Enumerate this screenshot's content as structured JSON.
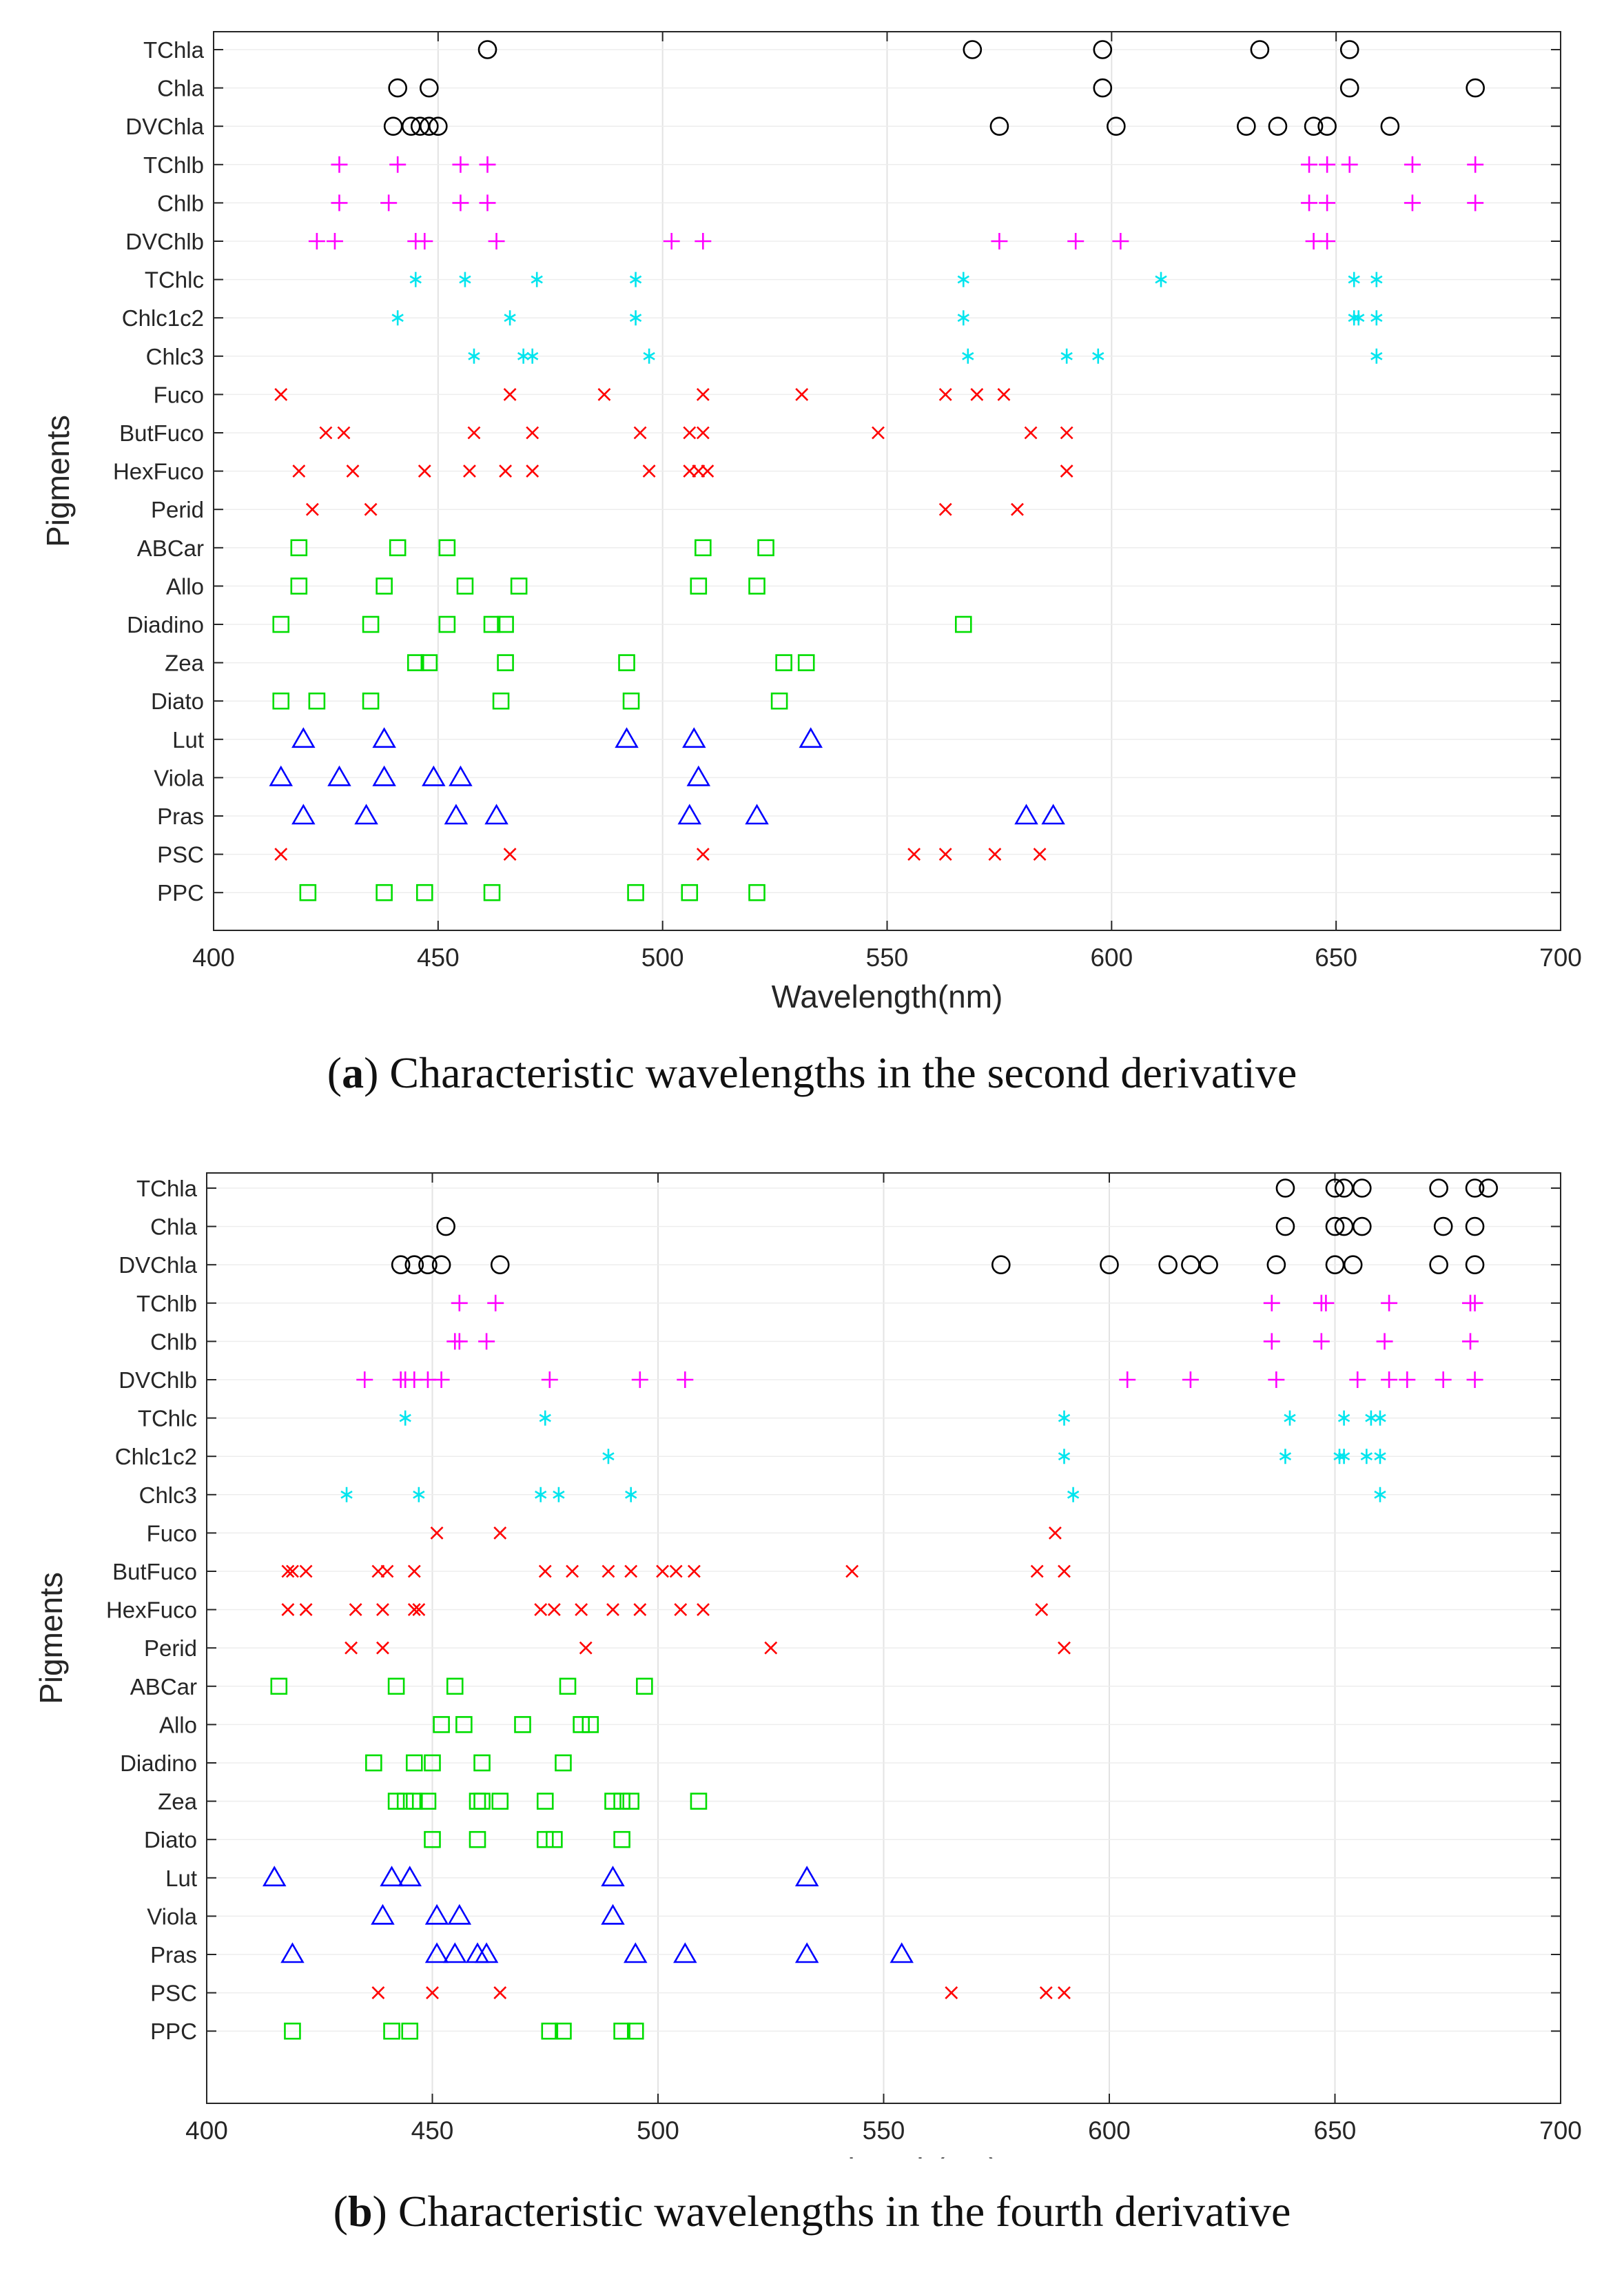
{
  "chart_data": [
    {
      "type": "scatter",
      "panel_letter": "a",
      "caption": "Characteristic wavelengths in the second derivative",
      "xlabel": "Wavelength(nm)",
      "ylabel": "Pigments",
      "xlim": [
        400,
        700
      ],
      "xticks": [
        400,
        450,
        500,
        550,
        600,
        650,
        700
      ],
      "grid": true,
      "categories": [
        "TChla",
        "Chla",
        "DVChla",
        "TChlb",
        "Chlb",
        "DVChlb",
        "TChlc",
        "Chlc1c2",
        "Chlc3",
        "Fuco",
        "ButFuco",
        "HexFuco",
        "Perid",
        "ABCar",
        "Allo",
        "Diadino",
        "Zea",
        "Diato",
        "Lut",
        "Viola",
        "Pras",
        "PSC",
        "PPC"
      ],
      "series": [
        {
          "name": "TChla",
          "marker": "circle",
          "color": "#000000",
          "values": [
            461,
            569,
            598,
            633,
            653
          ]
        },
        {
          "name": "Chla",
          "marker": "circle",
          "color": "#000000",
          "values": [
            441,
            448,
            598,
            653,
            681
          ]
        },
        {
          "name": "DVChla",
          "marker": "circle",
          "color": "#000000",
          "values": [
            440,
            444,
            446,
            448,
            450,
            575,
            601,
            630,
            637,
            645,
            648,
            662
          ]
        },
        {
          "name": "TChlb",
          "marker": "plus",
          "color": "#ff00ff",
          "values": [
            428,
            441,
            455,
            461,
            644,
            648,
            653,
            667,
            681
          ]
        },
        {
          "name": "Chlb",
          "marker": "plus",
          "color": "#ff00ff",
          "values": [
            428,
            439,
            455,
            461,
            644,
            648,
            667,
            681
          ]
        },
        {
          "name": "DVChlb",
          "marker": "plus",
          "color": "#ff00ff",
          "values": [
            423,
            427,
            445,
            447,
            463,
            502,
            509,
            575,
            592,
            602,
            645,
            648
          ]
        },
        {
          "name": "TChlc",
          "marker": "asterisk",
          "color": "#00e5ee",
          "values": [
            445,
            456,
            472,
            494,
            567,
            611,
            654,
            659
          ]
        },
        {
          "name": "Chlc1c2",
          "marker": "asterisk",
          "color": "#00e5ee",
          "values": [
            441,
            466,
            494,
            567,
            654,
            655,
            659
          ]
        },
        {
          "name": "Chlc3",
          "marker": "asterisk",
          "color": "#00e5ee",
          "values": [
            458,
            469,
            471,
            497,
            568,
            590,
            597,
            659
          ]
        },
        {
          "name": "Fuco",
          "marker": "cross",
          "color": "#ff0000",
          "values": [
            415,
            466,
            487,
            509,
            531,
            563,
            570,
            576
          ]
        },
        {
          "name": "ButFuco",
          "marker": "cross",
          "color": "#ff0000",
          "values": [
            425,
            429,
            458,
            471,
            495,
            506,
            509,
            548,
            582,
            590
          ]
        },
        {
          "name": "HexFuco",
          "marker": "cross",
          "color": "#ff0000",
          "values": [
            419,
            431,
            447,
            457,
            465,
            471,
            497,
            506,
            508,
            510,
            590
          ]
        },
        {
          "name": "Perid",
          "marker": "cross",
          "color": "#ff0000",
          "values": [
            422,
            435,
            563,
            579
          ]
        },
        {
          "name": "ABCar",
          "marker": "square",
          "color": "#00dd00",
          "values": [
            419,
            441,
            452,
            509,
            523
          ]
        },
        {
          "name": "Allo",
          "marker": "square",
          "color": "#00dd00",
          "values": [
            419,
            438,
            456,
            468,
            508,
            521
          ]
        },
        {
          "name": "Diadino",
          "marker": "square",
          "color": "#00dd00",
          "values": [
            415,
            435,
            452,
            462,
            465,
            567
          ]
        },
        {
          "name": "Zea",
          "marker": "square",
          "color": "#00dd00",
          "values": [
            445,
            448,
            465,
            492,
            527,
            532
          ]
        },
        {
          "name": "Diato",
          "marker": "square",
          "color": "#00dd00",
          "values": [
            415,
            423,
            435,
            464,
            493,
            526
          ]
        },
        {
          "name": "Lut",
          "marker": "triangle",
          "color": "#0000ff",
          "values": [
            420,
            438,
            492,
            507,
            533
          ]
        },
        {
          "name": "Viola",
          "marker": "triangle",
          "color": "#0000ff",
          "values": [
            415,
            428,
            438,
            449,
            455,
            508
          ]
        },
        {
          "name": "Pras",
          "marker": "triangle",
          "color": "#0000ff",
          "values": [
            420,
            434,
            454,
            463,
            506,
            521,
            581,
            587
          ]
        },
        {
          "name": "PSC",
          "marker": "cross",
          "color": "#ff0000",
          "values": [
            415,
            466,
            509,
            556,
            563,
            574,
            584
          ]
        },
        {
          "name": "PPC",
          "marker": "square",
          "color": "#00dd00",
          "values": [
            421,
            438,
            447,
            462,
            494,
            506,
            521
          ]
        }
      ]
    },
    {
      "type": "scatter",
      "panel_letter": "b",
      "caption": "Characteristic wavelengths in the fourth derivative",
      "xlabel": "Wavelength(nm)",
      "ylabel": "Pigments",
      "xlim": [
        400,
        700
      ],
      "xticks": [
        400,
        450,
        500,
        550,
        600,
        650,
        700
      ],
      "grid": true,
      "categories": [
        "TChla",
        "Chla",
        "DVChla",
        "TChlb",
        "Chlb",
        "DVChlb",
        "TChlc",
        "Chlc1c2",
        "Chlc3",
        "Fuco",
        "ButFuco",
        "HexFuco",
        "Perid",
        "ABCar",
        "Allo",
        "Diadino",
        "Zea",
        "Diato",
        "Lut",
        "Viola",
        "Pras",
        "PSC",
        "PPC"
      ],
      "series": [
        {
          "name": "TChla",
          "marker": "circle",
          "color": "#000000",
          "values": [
            639,
            650,
            652,
            656,
            673,
            681,
            684
          ]
        },
        {
          "name": "Chla",
          "marker": "circle",
          "color": "#000000",
          "values": [
            453,
            639,
            650,
            652,
            656,
            674,
            681
          ]
        },
        {
          "name": "DVChla",
          "marker": "circle",
          "color": "#000000",
          "values": [
            443,
            446,
            449,
            452,
            465,
            576,
            600,
            613,
            618,
            622,
            637,
            650,
            654,
            673,
            681
          ]
        },
        {
          "name": "TChlb",
          "marker": "plus",
          "color": "#ff00ff",
          "values": [
            456,
            464,
            636,
            647,
            648,
            662,
            680,
            681
          ]
        },
        {
          "name": "Chlb",
          "marker": "plus",
          "color": "#ff00ff",
          "values": [
            455,
            456,
            462,
            636,
            647,
            661,
            680
          ]
        },
        {
          "name": "DVChlb",
          "marker": "plus",
          "color": "#ff00ff",
          "values": [
            435,
            443,
            444,
            446,
            449,
            452,
            476,
            496,
            506,
            604,
            618,
            637,
            655,
            662,
            666,
            674,
            681
          ]
        },
        {
          "name": "TChlc",
          "marker": "asterisk",
          "color": "#00e5ee",
          "values": [
            444,
            475,
            590,
            640,
            652,
            658,
            660
          ]
        },
        {
          "name": "Chlc1c2",
          "marker": "asterisk",
          "color": "#00e5ee",
          "values": [
            489,
            590,
            639,
            651,
            652,
            657,
            660
          ]
        },
        {
          "name": "Chlc3",
          "marker": "asterisk",
          "color": "#00e5ee",
          "values": [
            431,
            447,
            474,
            478,
            494,
            592,
            660
          ]
        },
        {
          "name": "Fuco",
          "marker": "cross",
          "color": "#ff0000",
          "values": [
            451,
            465,
            588
          ]
        },
        {
          "name": "ButFuco",
          "marker": "cross",
          "color": "#ff0000",
          "values": [
            418,
            419,
            422,
            438,
            440,
            446,
            475,
            481,
            489,
            494,
            501,
            504,
            508,
            543,
            584,
            590
          ]
        },
        {
          "name": "HexFuco",
          "marker": "cross",
          "color": "#ff0000",
          "values": [
            418,
            422,
            433,
            439,
            446,
            447,
            474,
            477,
            483,
            490,
            496,
            505,
            510,
            585
          ]
        },
        {
          "name": "Perid",
          "marker": "cross",
          "color": "#ff0000",
          "values": [
            432,
            439,
            484,
            525,
            590
          ]
        },
        {
          "name": "ABCar",
          "marker": "square",
          "color": "#00dd00",
          "values": [
            416,
            442,
            455,
            480,
            497
          ]
        },
        {
          "name": "Allo",
          "marker": "square",
          "color": "#00dd00",
          "values": [
            452,
            457,
            470,
            483,
            485
          ]
        },
        {
          "name": "Diadino",
          "marker": "square",
          "color": "#00dd00",
          "values": [
            437,
            446,
            450,
            461,
            479
          ]
        },
        {
          "name": "Zea",
          "marker": "square",
          "color": "#00dd00",
          "values": [
            442,
            444,
            446,
            449,
            460,
            461,
            465,
            475,
            490,
            492,
            494,
            509
          ]
        },
        {
          "name": "Diato",
          "marker": "square",
          "color": "#00dd00",
          "values": [
            450,
            460,
            475,
            477,
            492
          ]
        },
        {
          "name": "Lut",
          "marker": "triangle",
          "color": "#0000ff",
          "values": [
            415,
            441,
            445,
            490,
            533
          ]
        },
        {
          "name": "Viola",
          "marker": "triangle",
          "color": "#0000ff",
          "values": [
            439,
            451,
            456,
            490
          ]
        },
        {
          "name": "Pras",
          "marker": "triangle",
          "color": "#0000ff",
          "values": [
            419,
            451,
            455,
            460,
            462,
            495,
            506,
            533,
            554
          ]
        },
        {
          "name": "PSC",
          "marker": "cross",
          "color": "#ff0000",
          "values": [
            438,
            450,
            465,
            565,
            586,
            590
          ]
        },
        {
          "name": "PPC",
          "marker": "square",
          "color": "#00dd00",
          "values": [
            419,
            441,
            445,
            476,
            479,
            492,
            495
          ]
        }
      ]
    }
  ]
}
